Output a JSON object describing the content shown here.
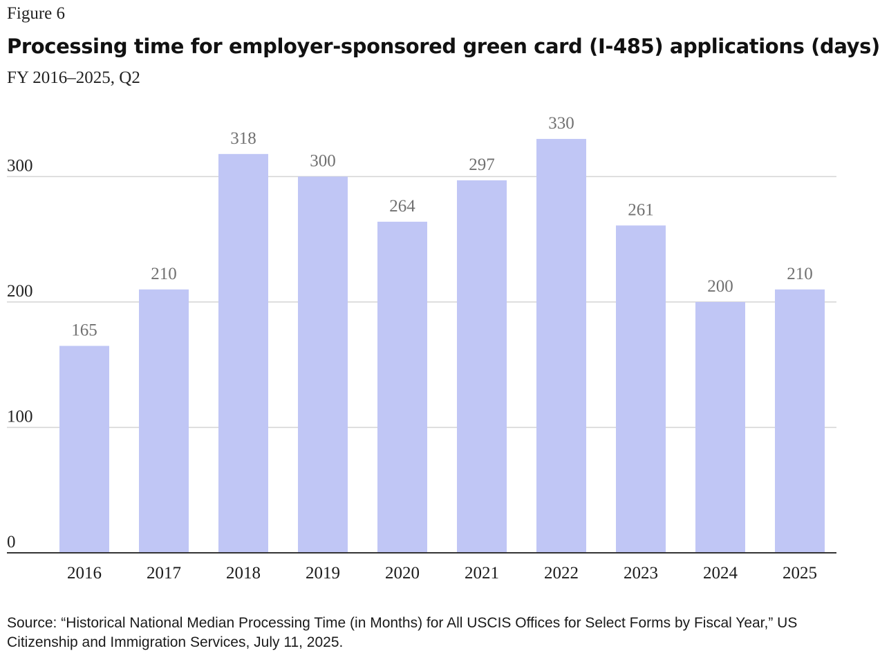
{
  "figure_label": "Figure 6",
  "source": "Source: “Historical National Median Processing Time (in Months) for All USCIS Offices for Select Forms by Fiscal Year,” US Citizenship and Immigration Services, July 11, 2025.",
  "colors": {
    "bar": "#c0c6f5",
    "grid": "#d4d4d4",
    "axis": "#333333",
    "data_label": "#707070"
  },
  "chart_data": {
    "type": "bar",
    "title": "Processing time for employer-sponsored green card (I-485) applications (days)",
    "subtitle": "FY 2016–2025, Q2",
    "categories": [
      "2016",
      "2017",
      "2018",
      "2019",
      "2020",
      "2021",
      "2022",
      "2023",
      "2024",
      "2025"
    ],
    "values": [
      165,
      210,
      318,
      300,
      264,
      297,
      330,
      261,
      200,
      210
    ],
    "xlabel": "",
    "ylabel": "",
    "ylim": [
      0,
      350
    ],
    "yticks": [
      0,
      100,
      200,
      300
    ],
    "grid": true,
    "legend": "none"
  }
}
